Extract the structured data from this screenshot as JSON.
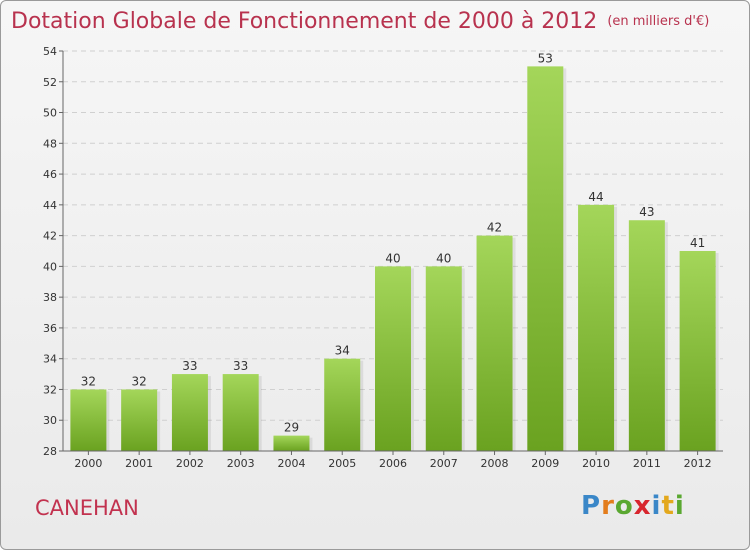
{
  "header": {
    "title": "Dotation Globale de Fonctionnement de 2000 à 2012",
    "unit": "(en milliers d'€)"
  },
  "commune": "CANEHAN",
  "logo": {
    "letters": [
      "P",
      "r",
      "o",
      "x",
      "i",
      "t",
      "i"
    ],
    "colors": [
      "#3a87c8",
      "#e37d1d",
      "#5aa831",
      "#d8262e",
      "#3a87c8",
      "#e3a81d",
      "#5aa831"
    ]
  },
  "chart_data": {
    "type": "bar",
    "categories": [
      "2000",
      "2001",
      "2002",
      "2003",
      "2004",
      "2005",
      "2006",
      "2007",
      "2008",
      "2009",
      "2010",
      "2011",
      "2012"
    ],
    "values": [
      32,
      32,
      33,
      33,
      29,
      34,
      40,
      40,
      42,
      53,
      44,
      43,
      41
    ],
    "title": "Dotation Globale de Fonctionnement de 2000 à 2012",
    "ylim": [
      28,
      54
    ],
    "yticks": [
      28,
      30,
      32,
      34,
      36,
      38,
      40,
      42,
      44,
      46,
      48,
      50,
      52,
      54
    ],
    "grid": true,
    "bar_color_top": "#a4d65a",
    "bar_color_bottom": "#6aa220"
  }
}
